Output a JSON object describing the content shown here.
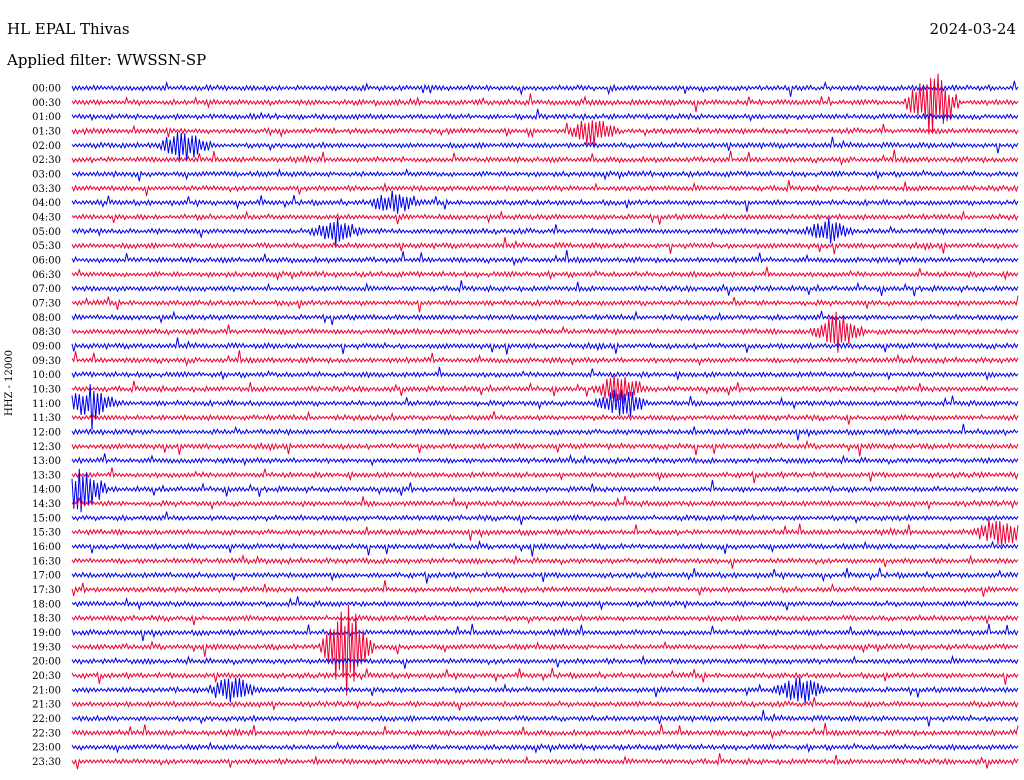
{
  "header": {
    "station": "HL EPAL Thivas",
    "date": "2024-03-24",
    "filter": "Applied filter: WWSSN-SP"
  },
  "chart_data": {
    "type": "line",
    "title": "HL EPAL Thivas",
    "subtitle": "Applied filter: WWSSN-SP",
    "ylabel": "HHZ - 12000",
    "colors": [
      "#0000ee",
      "#ee0033"
    ],
    "rows": [
      "00:00",
      "00:30",
      "01:00",
      "01:30",
      "02:00",
      "02:30",
      "03:00",
      "03:30",
      "04:00",
      "04:30",
      "05:00",
      "05:30",
      "06:00",
      "06:30",
      "07:00",
      "07:30",
      "08:00",
      "08:30",
      "09:00",
      "09:30",
      "10:00",
      "10:30",
      "11:00",
      "11:30",
      "12:00",
      "12:30",
      "13:00",
      "13:30",
      "14:00",
      "14:30",
      "15:00",
      "15:30",
      "16:00",
      "16:30",
      "17:00",
      "17:30",
      "18:00",
      "18:30",
      "19:00",
      "19:30",
      "20:00",
      "20:30",
      "21:00",
      "21:30",
      "22:00",
      "22:30",
      "23:00",
      "23:30"
    ],
    "events": [
      {
        "row": 1,
        "x": 0.91,
        "amp": 2.6
      },
      {
        "row": 3,
        "x": 0.55,
        "amp": 1.0
      },
      {
        "row": 4,
        "x": 0.12,
        "amp": 1.3
      },
      {
        "row": 8,
        "x": 0.34,
        "amp": 0.8
      },
      {
        "row": 10,
        "x": 0.28,
        "amp": 0.9
      },
      {
        "row": 10,
        "x": 0.8,
        "amp": 1.0
      },
      {
        "row": 17,
        "x": 0.81,
        "amp": 1.4
      },
      {
        "row": 21,
        "x": 0.58,
        "amp": 1.1
      },
      {
        "row": 22,
        "x": 0.02,
        "amp": 1.3
      },
      {
        "row": 22,
        "x": 0.58,
        "amp": 1.2
      },
      {
        "row": 28,
        "x": 0.01,
        "amp": 1.6
      },
      {
        "row": 31,
        "x": 0.98,
        "amp": 1.2
      },
      {
        "row": 39,
        "x": 0.29,
        "amp": 3.5
      },
      {
        "row": 42,
        "x": 0.17,
        "amp": 1.0
      },
      {
        "row": 42,
        "x": 0.77,
        "amp": 1.0
      }
    ]
  }
}
